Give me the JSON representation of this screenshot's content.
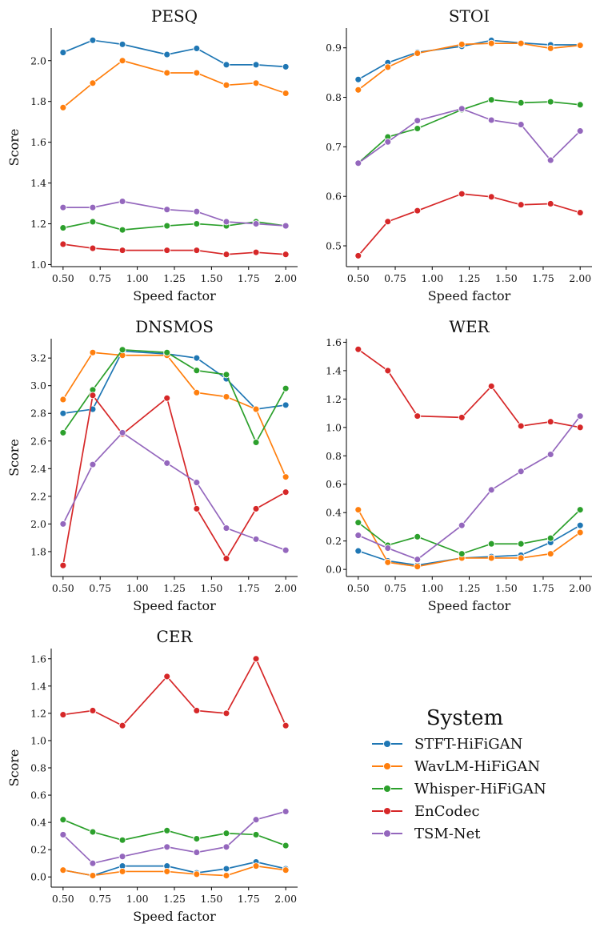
{
  "legend": {
    "title": "System",
    "entries": [
      "STFT-HiFiGAN",
      "WavLM-HiFiGAN",
      "Whisper-HiFiGAN",
      "EnCodec",
      "TSM-Net"
    ]
  },
  "series_colors": {
    "STFT-HiFiGAN": "#1f77b4",
    "WavLM-HiFiGAN": "#ff7f0e",
    "Whisper-HiFiGAN": "#2ca02c",
    "EnCodec": "#d62728",
    "TSM-Net": "#9467bd"
  },
  "chart_data": [
    {
      "type": "line",
      "title": "PESQ",
      "xlabel": "Speed factor",
      "ylabel": "Score",
      "x": [
        0.5,
        0.7,
        0.9,
        1.2,
        1.4,
        1.6,
        1.8,
        2.0
      ],
      "xlim": [
        0.42,
        2.08
      ],
      "ylim": [
        0.99,
        2.16
      ],
      "xticks": [
        "0.50",
        "0.75",
        "1.00",
        "1.25",
        "1.50",
        "1.75",
        "2.00"
      ],
      "yticks": [
        "1.0",
        "1.2",
        "1.4",
        "1.6",
        "1.8",
        "2.0"
      ],
      "series": [
        {
          "name": "STFT-HiFiGAN",
          "values": [
            2.04,
            2.1,
            2.08,
            2.03,
            2.06,
            1.98,
            1.98,
            1.97
          ]
        },
        {
          "name": "WavLM-HiFiGAN",
          "values": [
            1.77,
            1.89,
            2.0,
            1.94,
            1.94,
            1.88,
            1.89,
            1.84
          ]
        },
        {
          "name": "Whisper-HiFiGAN",
          "values": [
            1.18,
            1.21,
            1.17,
            1.19,
            1.2,
            1.19,
            1.21,
            1.19
          ]
        },
        {
          "name": "EnCodec",
          "values": [
            1.1,
            1.08,
            1.07,
            1.07,
            1.07,
            1.05,
            1.06,
            1.05
          ]
        },
        {
          "name": "TSM-Net",
          "values": [
            1.28,
            1.28,
            1.31,
            1.27,
            1.26,
            1.21,
            1.2,
            1.19
          ]
        }
      ]
    },
    {
      "type": "line",
      "title": "STOI",
      "xlabel": "Speed factor",
      "ylabel": "",
      "x": [
        0.5,
        0.7,
        0.9,
        1.2,
        1.4,
        1.6,
        1.8,
        2.0
      ],
      "xlim": [
        0.42,
        2.08
      ],
      "ylim": [
        0.458,
        0.94
      ],
      "xticks": [
        "0.50",
        "0.75",
        "1.00",
        "1.25",
        "1.50",
        "1.75",
        "2.00"
      ],
      "yticks": [
        "0.5",
        "0.6",
        "0.7",
        "0.8",
        "0.9"
      ],
      "series": [
        {
          "name": "STFT-HiFiGAN",
          "values": [
            0.836,
            0.87,
            0.891,
            0.903,
            0.915,
            0.91,
            0.906,
            0.906
          ]
        },
        {
          "name": "WavLM-HiFiGAN",
          "values": [
            0.815,
            0.861,
            0.889,
            0.907,
            0.909,
            0.909,
            0.899,
            0.905
          ]
        },
        {
          "name": "Whisper-HiFiGAN",
          "values": [
            0.667,
            0.72,
            0.737,
            0.775,
            0.795,
            0.789,
            0.791,
            0.785
          ]
        },
        {
          "name": "EnCodec",
          "values": [
            0.48,
            0.549,
            0.571,
            0.605,
            0.599,
            0.583,
            0.585,
            0.567
          ]
        },
        {
          "name": "TSM-Net",
          "values": [
            0.667,
            0.71,
            0.753,
            0.777,
            0.754,
            0.745,
            0.673,
            0.732
          ]
        }
      ]
    },
    {
      "type": "line",
      "title": "DNSMOS",
      "xlabel": "Speed factor",
      "ylabel": "Score",
      "x": [
        0.5,
        0.7,
        0.9,
        1.2,
        1.4,
        1.6,
        1.8,
        2.0
      ],
      "xlim": [
        0.42,
        2.08
      ],
      "ylim": [
        1.62,
        3.34
      ],
      "xticks": [
        "0.50",
        "0.75",
        "1.00",
        "1.25",
        "1.50",
        "1.75",
        "2.00"
      ],
      "yticks": [
        "1.8",
        "2.0",
        "2.2",
        "2.4",
        "2.6",
        "2.8",
        "3.0",
        "3.2"
      ],
      "series": [
        {
          "name": "STFT-HiFiGAN",
          "values": [
            2.8,
            2.83,
            3.25,
            3.23,
            3.2,
            3.05,
            2.83,
            2.86
          ]
        },
        {
          "name": "WavLM-HiFiGAN",
          "values": [
            2.9,
            3.24,
            3.22,
            3.22,
            2.95,
            2.92,
            2.83,
            2.34
          ]
        },
        {
          "name": "Whisper-HiFiGAN",
          "values": [
            2.66,
            2.97,
            3.26,
            3.24,
            3.11,
            3.08,
            2.59,
            2.98
          ]
        },
        {
          "name": "EnCodec",
          "values": [
            1.7,
            2.93,
            2.65,
            2.91,
            2.11,
            1.75,
            2.11,
            2.23
          ]
        },
        {
          "name": "TSM-Net",
          "values": [
            2.0,
            2.43,
            2.66,
            2.44,
            2.3,
            1.97,
            1.89,
            1.81
          ]
        }
      ]
    },
    {
      "type": "line",
      "title": "WER",
      "xlabel": "Speed factor",
      "ylabel": "",
      "x": [
        0.5,
        0.7,
        0.9,
        1.2,
        1.4,
        1.6,
        1.8,
        2.0
      ],
      "xlim": [
        0.42,
        2.08
      ],
      "ylim": [
        -0.05,
        1.625
      ],
      "xticks": [
        "0.50",
        "0.75",
        "1.00",
        "1.25",
        "1.50",
        "1.75",
        "2.00"
      ],
      "yticks": [
        "0.0",
        "0.2",
        "0.4",
        "0.6",
        "0.8",
        "1.0",
        "1.2",
        "1.4",
        "1.6"
      ],
      "series": [
        {
          "name": "STFT-HiFiGAN",
          "values": [
            0.13,
            0.06,
            0.03,
            0.08,
            0.09,
            0.1,
            0.19,
            0.31
          ]
        },
        {
          "name": "WavLM-HiFiGAN",
          "values": [
            0.42,
            0.05,
            0.02,
            0.08,
            0.08,
            0.08,
            0.11,
            0.26
          ]
        },
        {
          "name": "Whisper-HiFiGAN",
          "values": [
            0.33,
            0.17,
            0.23,
            0.11,
            0.18,
            0.18,
            0.22,
            0.42
          ]
        },
        {
          "name": "EnCodec",
          "values": [
            1.55,
            1.4,
            1.08,
            1.07,
            1.29,
            1.01,
            1.04,
            1.0
          ]
        },
        {
          "name": "TSM-Net",
          "values": [
            0.24,
            0.15,
            0.07,
            0.31,
            0.56,
            0.69,
            0.81,
            1.08
          ]
        }
      ]
    },
    {
      "type": "line",
      "title": "CER",
      "xlabel": "Speed factor",
      "ylabel": "Score",
      "x": [
        0.5,
        0.7,
        0.9,
        1.2,
        1.4,
        1.6,
        1.8,
        2.0
      ],
      "xlim": [
        0.42,
        2.08
      ],
      "ylim": [
        -0.075,
        1.675
      ],
      "xticks": [
        "0.50",
        "0.75",
        "1.00",
        "1.25",
        "1.50",
        "1.75",
        "2.00"
      ],
      "yticks": [
        "0.0",
        "0.2",
        "0.4",
        "0.6",
        "0.8",
        "1.0",
        "1.2",
        "1.4",
        "1.6"
      ],
      "series": [
        {
          "name": "STFT-HiFiGAN",
          "values": [
            0.05,
            0.01,
            0.08,
            0.08,
            0.03,
            0.06,
            0.11,
            0.06
          ]
        },
        {
          "name": "WavLM-HiFiGAN",
          "values": [
            0.05,
            0.01,
            0.04,
            0.04,
            0.02,
            0.01,
            0.08,
            0.05
          ]
        },
        {
          "name": "Whisper-HiFiGAN",
          "values": [
            0.42,
            0.33,
            0.27,
            0.34,
            0.28,
            0.32,
            0.31,
            0.23
          ]
        },
        {
          "name": "EnCodec",
          "values": [
            1.19,
            1.22,
            1.11,
            1.47,
            1.22,
            1.2,
            1.6,
            1.11
          ]
        },
        {
          "name": "TSM-Net",
          "values": [
            0.31,
            0.1,
            0.15,
            0.22,
            0.18,
            0.22,
            0.42,
            0.48
          ]
        }
      ]
    }
  ]
}
